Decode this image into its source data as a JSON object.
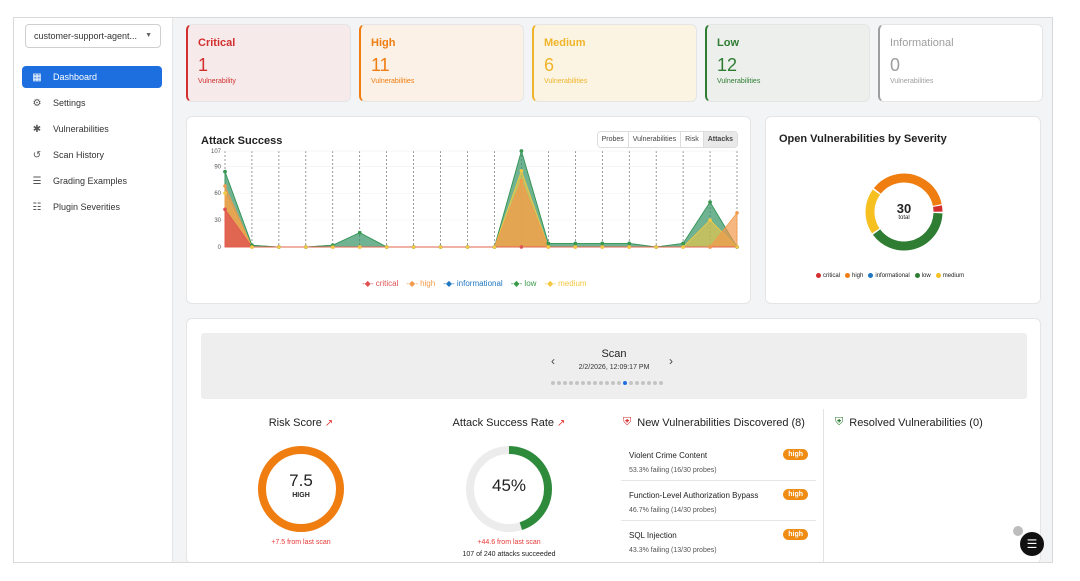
{
  "sidebar": {
    "agent_selector": "customer-support-agent...",
    "items": [
      {
        "label": "Dashboard",
        "icon": "dashboard-icon",
        "active": true
      },
      {
        "label": "Settings",
        "icon": "gear-icon",
        "active": false
      },
      {
        "label": "Vulnerabilities",
        "icon": "bug-icon",
        "active": false
      },
      {
        "label": "Scan History",
        "icon": "history-icon",
        "active": false
      },
      {
        "label": "Grading Examples",
        "icon": "list-icon",
        "active": false
      },
      {
        "label": "Plugin Severities",
        "icon": "sliders-icon",
        "active": false
      }
    ]
  },
  "severity_cards": [
    {
      "label": "Critical",
      "count": "1",
      "sub": "Vulnerability",
      "color": "#d32f2f",
      "bg": "#f7eaea"
    },
    {
      "label": "High",
      "count": "11",
      "sub": "Vulnerabilities",
      "color": "#ef7d10",
      "bg": "#fbf1e6"
    },
    {
      "label": "Medium",
      "count": "6",
      "sub": "Vulnerabilities",
      "color": "#f0b429",
      "bg": "#fbf4e2"
    },
    {
      "label": "Low",
      "count": "12",
      "sub": "Vulnerabilities",
      "color": "#2e7d32",
      "bg": "#edefed"
    },
    {
      "label": "Informational",
      "count": "0",
      "sub": "Vulnerabilities",
      "color": "#9e9e9e",
      "bg": "#ffffff"
    }
  ],
  "attack_success": {
    "title": "Attack Success",
    "tabs": [
      "Probes",
      "Vulnerabilities",
      "Risk",
      "Attacks"
    ],
    "active_tab": "Attacks"
  },
  "open_vulns": {
    "title": "Open Vulnerabilities by Severity",
    "total": "30",
    "total_label": "total"
  },
  "chart_data": [
    {
      "type": "area",
      "title": "Attack Success",
      "x": [
        1,
        2,
        3,
        4,
        5,
        6,
        7,
        8,
        9,
        10,
        11,
        12,
        13,
        14,
        15,
        16,
        17,
        18,
        19,
        20
      ],
      "y_ticks": [
        "107",
        "90",
        "60",
        "30",
        "0"
      ],
      "ylim": [
        0,
        107
      ],
      "series": [
        {
          "name": "critical",
          "color": "#e05252",
          "values": [
            42,
            0,
            0,
            0,
            0,
            0,
            0,
            0,
            0,
            0,
            0,
            0,
            0,
            0,
            0,
            0,
            0,
            0,
            0,
            0
          ]
        },
        {
          "name": "high",
          "color": "#f29a4a",
          "values": [
            68,
            0,
            0,
            0,
            0,
            0,
            0,
            0,
            0,
            0,
            0,
            74,
            0,
            0,
            0,
            0,
            0,
            0,
            0,
            38
          ]
        },
        {
          "name": "informational",
          "color": "#1f77c4",
          "values": [
            84,
            2,
            0,
            0,
            2,
            16,
            0,
            0,
            0,
            0,
            0,
            107,
            4,
            4,
            4,
            4,
            0,
            4,
            50,
            0
          ]
        },
        {
          "name": "low",
          "color": "#3a9a4a",
          "values": [
            84,
            2,
            0,
            0,
            2,
            16,
            0,
            0,
            0,
            0,
            0,
            107,
            4,
            4,
            4,
            4,
            0,
            4,
            50,
            0
          ]
        },
        {
          "name": "medium",
          "color": "#f5c842",
          "values": [
            60,
            0,
            0,
            0,
            0,
            0,
            0,
            0,
            0,
            0,
            0,
            85,
            0,
            0,
            0,
            0,
            0,
            0,
            30,
            0
          ]
        }
      ],
      "legend": [
        "critical",
        "high",
        "informational",
        "low",
        "medium"
      ]
    },
    {
      "type": "pie",
      "title": "Open Vulnerabilities by Severity",
      "categories": [
        "critical",
        "high",
        "informational",
        "low",
        "medium"
      ],
      "values": [
        1,
        11,
        0,
        12,
        6
      ],
      "colors": [
        "#d32f2f",
        "#ef7d10",
        "#1f77c4",
        "#2e7d32",
        "#f5c020"
      ]
    }
  ],
  "scan": {
    "title": "Scan",
    "date": "2/2/2026, 12:09:17 PM",
    "pager_total": 19,
    "pager_active": 12,
    "prev": "‹",
    "next": "›"
  },
  "risk_score": {
    "title": "Risk Score",
    "value": "7.5",
    "level": "HIGH",
    "fraction": 1.0,
    "delta": "+7.5 from last scan"
  },
  "attack_rate": {
    "title": "Attack Success Rate",
    "value": "45%",
    "fraction": 0.45,
    "delta": "+44.6 from last scan",
    "detail": "107 of 240 attacks succeeded"
  },
  "new_vulns": {
    "title": "New Vulnerabilities Discovered (8)",
    "items": [
      {
        "name": "Violent Crime Content",
        "rate": "53.3% failing (16/30 probes)",
        "badge": "high"
      },
      {
        "name": "Function-Level Authorization Bypass",
        "rate": "46.7% failing (14/30 probes)",
        "badge": "high"
      },
      {
        "name": "SQL Injection",
        "rate": "43.3% failing (13/30 probes)",
        "badge": "high"
      }
    ]
  },
  "resolved": {
    "title": "Resolved Vulnerabilities (0)"
  }
}
